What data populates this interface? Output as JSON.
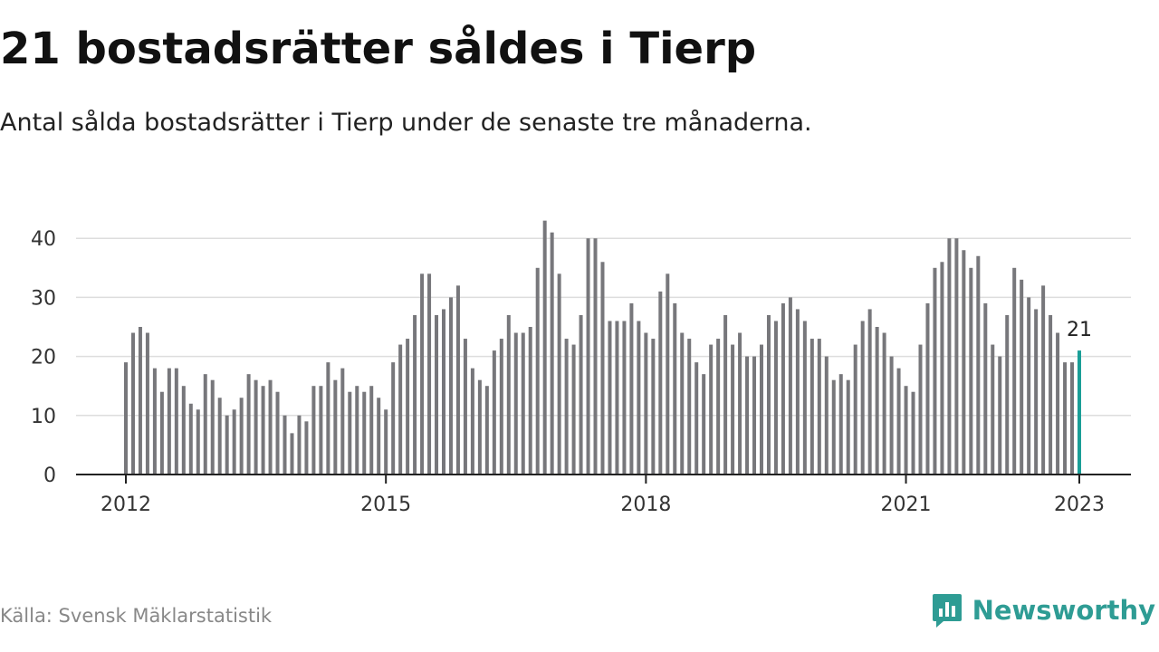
{
  "header": {
    "title": "21 bostadsrätter såldes i Tierp",
    "subtitle": "Antal sålda bostadsrätter i Tierp under de senaste tre månaderna."
  },
  "footer": {
    "source": "Källa: Svensk Mäklarstatistik",
    "brand": "Newsworthy",
    "brand_icon": "newsworthy-logo-icon"
  },
  "colors": {
    "bar": "#77777b",
    "highlight": "#1a9e97",
    "grid": "#dddddd",
    "axis": "#222222",
    "brand": "#2e9c94"
  },
  "chart_data": {
    "type": "bar",
    "title": "21 bostadsrätter såldes i Tierp",
    "subtitle": "Antal sålda bostadsrätter i Tierp under de senaste tre månaderna.",
    "xlabel": "",
    "ylabel": "",
    "x_start": "2012-01",
    "x_step": "month",
    "x_ticks": [
      "2012",
      "2015",
      "2018",
      "2021",
      "2023"
    ],
    "y_ticks": [
      0,
      10,
      20,
      30,
      40
    ],
    "ylim": [
      0,
      44
    ],
    "grid": true,
    "highlight_last": true,
    "annotation": {
      "label": "21",
      "target": "last"
    },
    "values": [
      19,
      24,
      25,
      24,
      18,
      14,
      18,
      18,
      15,
      12,
      11,
      17,
      16,
      13,
      10,
      11,
      13,
      17,
      16,
      15,
      16,
      14,
      10,
      7,
      10,
      9,
      15,
      15,
      19,
      16,
      18,
      14,
      15,
      14,
      15,
      13,
      11,
      19,
      22,
      23,
      27,
      34,
      34,
      27,
      28,
      30,
      32,
      23,
      18,
      16,
      15,
      21,
      23,
      27,
      24,
      24,
      25,
      35,
      43,
      41,
      34,
      23,
      22,
      27,
      40,
      40,
      36,
      26,
      26,
      26,
      29,
      26,
      24,
      23,
      31,
      34,
      29,
      24,
      23,
      19,
      17,
      22,
      23,
      27,
      22,
      24,
      20,
      20,
      22,
      27,
      26,
      29,
      30,
      28,
      26,
      23,
      23,
      20,
      16,
      17,
      16,
      22,
      26,
      28,
      25,
      24,
      20,
      18,
      15,
      14,
      22,
      29,
      35,
      36,
      40,
      40,
      38,
      35,
      37,
      29,
      22,
      20,
      27,
      35,
      33,
      30,
      28,
      32,
      27,
      24,
      19,
      19,
      21
    ]
  }
}
